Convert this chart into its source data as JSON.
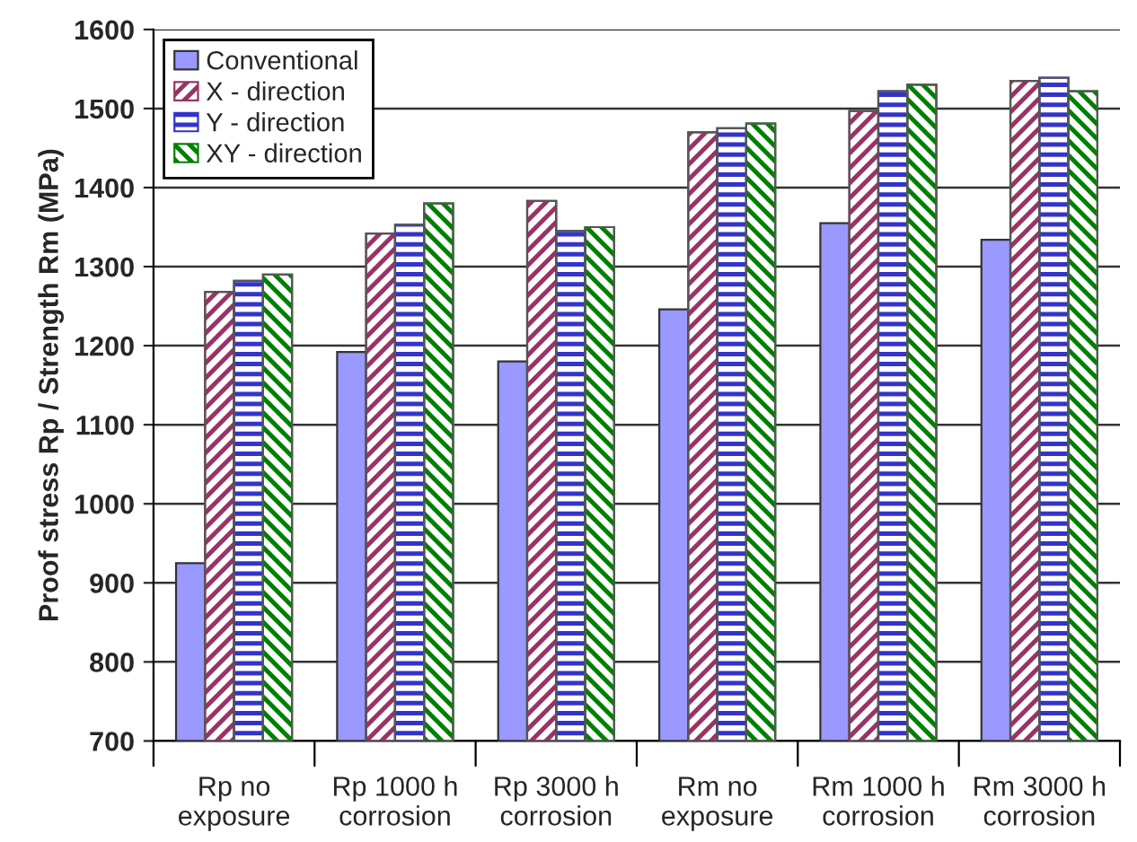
{
  "chart_data": {
    "type": "bar",
    "ylabel": "Proof stress Rp / Strength Rm (MPa)",
    "categories": [
      "Rp no\nexposure",
      "Rp 1000 h\ncorrosion",
      "Rp 3000 h\ncorrosion",
      "Rm no\nexposure",
      "Rm 1000 h\ncorrosion",
      "Rm 3000 h\ncorrosion"
    ],
    "series": [
      {
        "name": "Conventional",
        "color": "#9999ff",
        "values": [
          925,
          1192,
          1180,
          1246,
          1355,
          1334
        ]
      },
      {
        "name": "X - direction",
        "color": "#993366",
        "values": [
          1268,
          1342,
          1383,
          1470,
          1497,
          1535
        ]
      },
      {
        "name": "Y - direction",
        "color": "#3333cc",
        "values": [
          1282,
          1353,
          1345,
          1475,
          1522,
          1539
        ]
      },
      {
        "name": "XY - direction",
        "color": "#008000",
        "values": [
          1290,
          1380,
          1350,
          1481,
          1530,
          1522
        ]
      }
    ],
    "ylim": [
      700,
      1600
    ],
    "yticks": [
      700,
      800,
      900,
      1000,
      1100,
      1200,
      1300,
      1400,
      1500,
      1600
    ],
    "grid": "y",
    "legend": "top left"
  }
}
